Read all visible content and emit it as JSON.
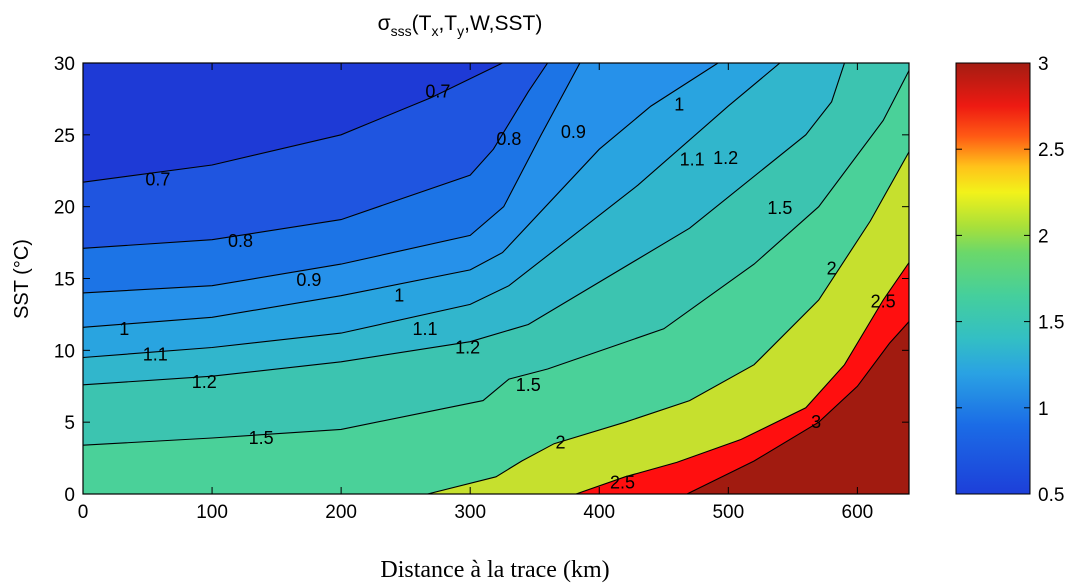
{
  "chart_data": {
    "type": "contour",
    "title_parts": [
      "σ",
      "sss",
      "(T",
      "x",
      ",T",
      "y",
      ",W,SST)"
    ],
    "xlabel": "Distance à la trace (km)",
    "ylabel": "SST (°C)",
    "xlim": [
      0,
      640
    ],
    "ylim": [
      0,
      30
    ],
    "xticks": [
      0,
      100,
      200,
      300,
      400,
      500,
      600
    ],
    "xtick_labels": [
      "0",
      "100",
      "200",
      "300",
      "400",
      "500",
      "600"
    ],
    "yticks": [
      0,
      5,
      10,
      15,
      20,
      25,
      30
    ],
    "ytick_labels": [
      "0",
      "5",
      "10",
      "15",
      "20",
      "25",
      "30"
    ],
    "colorbar": {
      "range": [
        0.5,
        3
      ],
      "ticks": [
        0.5,
        1,
        1.5,
        2,
        2.5,
        3
      ],
      "tick_labels": [
        "0.5",
        "1",
        "1.5",
        "2",
        "2.5",
        "3"
      ]
    },
    "levels": [
      {
        "value": 0.7,
        "label": "0.7",
        "color": "#1f55e0",
        "points": [
          [
            0,
            21.7
          ],
          [
            100,
            22.9
          ],
          [
            200,
            25.0
          ],
          [
            270,
            27.6
          ],
          [
            325,
            30
          ]
        ],
        "labels": [
          [
            58,
            21.9
          ],
          [
            275,
            28.0
          ]
        ]
      },
      {
        "value": 0.8,
        "label": "0.8",
        "color": "#1c74e6",
        "points": [
          [
            0,
            17.1
          ],
          [
            100,
            17.7
          ],
          [
            200,
            19.1
          ],
          [
            300,
            22.2
          ],
          [
            318,
            24.0
          ],
          [
            345,
            28.0
          ],
          [
            360,
            30
          ]
        ],
        "labels": [
          [
            122,
            17.6
          ],
          [
            330,
            24.7
          ]
        ]
      },
      {
        "value": 0.9,
        "label": "0.9",
        "color": "#2691ea",
        "points": [
          [
            0,
            14.0
          ],
          [
            100,
            14.5
          ],
          [
            200,
            16.0
          ],
          [
            300,
            18.0
          ],
          [
            326,
            20.0
          ],
          [
            355,
            25.0
          ],
          [
            385,
            30
          ]
        ],
        "labels": [
          [
            175,
            14.9
          ],
          [
            380,
            25.2
          ]
        ]
      },
      {
        "value": 1.0,
        "label": "1",
        "color": "#29a4e0",
        "points": [
          [
            0,
            11.6
          ],
          [
            100,
            12.3
          ],
          [
            200,
            13.8
          ],
          [
            300,
            15.6
          ],
          [
            325,
            16.8
          ],
          [
            400,
            24.0
          ],
          [
            440,
            27.0
          ],
          [
            492,
            30
          ]
        ],
        "labels": [
          [
            32,
            11.5
          ],
          [
            245,
            13.8
          ],
          [
            462,
            27.1
          ]
        ]
      },
      {
        "value": 1.1,
        "label": "1.1",
        "color": "#31b6cc",
        "points": [
          [
            0,
            9.5
          ],
          [
            100,
            10.2
          ],
          [
            200,
            11.2
          ],
          [
            300,
            13.2
          ],
          [
            330,
            14.5
          ],
          [
            430,
            21.5
          ],
          [
            500,
            27.0
          ],
          [
            540,
            30
          ]
        ],
        "labels": [
          [
            56,
            9.7
          ],
          [
            265,
            11.5
          ],
          [
            472,
            23.3
          ]
        ]
      },
      {
        "value": 1.2,
        "label": "1.2",
        "color": "#3cc4b0",
        "points": [
          [
            0,
            7.6
          ],
          [
            100,
            8.2
          ],
          [
            200,
            9.2
          ],
          [
            300,
            10.6
          ],
          [
            345,
            11.8
          ],
          [
            470,
            18.5
          ],
          [
            560,
            25.0
          ],
          [
            580,
            27.3
          ],
          [
            590,
            30
          ]
        ],
        "labels": [
          [
            94,
            7.8
          ],
          [
            298,
            10.2
          ],
          [
            498,
            23.4
          ]
        ]
      },
      {
        "value": 1.5,
        "label": "1.5",
        "color": "#4ad199",
        "points": [
          [
            0,
            3.4
          ],
          [
            100,
            3.9
          ],
          [
            200,
            4.5
          ],
          [
            310,
            6.5
          ],
          [
            330,
            8.0
          ],
          [
            360,
            8.7
          ],
          [
            450,
            11.5
          ],
          [
            520,
            16.0
          ],
          [
            570,
            20.0
          ],
          [
            620,
            26.0
          ],
          [
            643,
            30
          ]
        ],
        "labels": [
          [
            138,
            3.9
          ],
          [
            345,
            7.6
          ],
          [
            540,
            19.9
          ]
        ]
      },
      {
        "value": 2.0,
        "label": "2",
        "color": "#c6e02e",
        "points": [
          [
            267,
            0
          ],
          [
            320,
            1.2
          ],
          [
            340,
            2.3
          ],
          [
            365,
            3.5
          ],
          [
            420,
            5.0
          ],
          [
            470,
            6.5
          ],
          [
            520,
            9.0
          ],
          [
            570,
            13.5
          ],
          [
            610,
            19.0
          ],
          [
            643,
            24.3
          ]
        ],
        "labels": [
          [
            370,
            3.6
          ],
          [
            580,
            15.7
          ]
        ]
      },
      {
        "value": 2.5,
        "label": "2.5",
        "color": "#ff0f0f",
        "points": [
          [
            382,
            0
          ],
          [
            420,
            1.2
          ],
          [
            460,
            2.2
          ],
          [
            510,
            3.8
          ],
          [
            560,
            6.0
          ],
          [
            590,
            9.0
          ],
          [
            620,
            13.5
          ],
          [
            643,
            16.5
          ]
        ],
        "labels": [
          [
            418,
            0.8
          ],
          [
            620,
            13.4
          ]
        ]
      },
      {
        "value": 3.0,
        "label": "3",
        "color": "#a11b10",
        "points": [
          [
            468,
            0
          ],
          [
            520,
            2.3
          ],
          [
            570,
            5.0
          ],
          [
            600,
            7.5
          ],
          [
            625,
            10.5
          ],
          [
            643,
            12.3
          ]
        ],
        "labels": [
          [
            568,
            5.0
          ]
        ]
      }
    ]
  }
}
